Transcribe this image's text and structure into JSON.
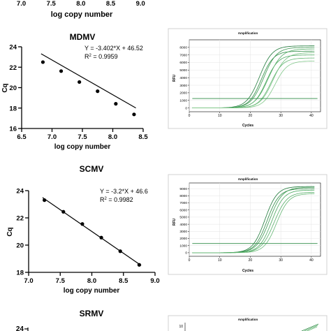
{
  "chart_data": [
    {
      "type": "scatter",
      "title": "",
      "xlabel": "log copy number",
      "ylabel": "",
      "x_ticks": [
        "7.0",
        "7.5",
        "8.0",
        "8.5",
        "9.0"
      ],
      "x_tick_values": [
        7.0,
        7.5,
        8.0,
        8.5,
        9.0
      ],
      "xlim": [
        6.9,
        9.15
      ],
      "partial": true
    },
    {
      "type": "scatter",
      "title": "MDMV",
      "xlabel": "log copy number",
      "ylabel": "Cq",
      "xlim": [
        6.5,
        8.5
      ],
      "ylim": [
        16,
        24
      ],
      "x_ticks": [
        "6.5",
        "7.0",
        "7.5",
        "8.0",
        "8.5"
      ],
      "x_tick_values": [
        6.5,
        7.0,
        7.5,
        8.0,
        8.5
      ],
      "y_ticks": [
        "16",
        "18",
        "20",
        "22",
        "24"
      ],
      "y_tick_values": [
        16,
        18,
        20,
        22,
        24
      ],
      "x": [
        6.85,
        7.15,
        7.45,
        7.75,
        8.05,
        8.35
      ],
      "y": [
        22.5,
        21.62,
        20.55,
        19.65,
        18.42,
        17.38
      ],
      "fit": {
        "slope": -3.402,
        "intercept": 46.52
      },
      "equation": "Y = -3.402*X + 46.52",
      "r2_label": "R",
      "r2_exp": "2",
      "r2_value": " = 0.9959"
    },
    {
      "type": "line",
      "title": "Amplification",
      "xlabel": "Cycles",
      "ylabel": "RFU",
      "xlim": [
        0,
        43
      ],
      "ylim": [
        -500,
        9000
      ],
      "x_ticks": [
        "0",
        "10",
        "20",
        "30",
        "40"
      ],
      "x_tick_values": [
        0,
        10,
        20,
        30,
        40
      ],
      "y_ticks": [
        "0",
        "1000",
        "2000",
        "3000",
        "4000",
        "5000",
        "6000",
        "7000",
        "8000"
      ],
      "y_tick_values": [
        0,
        1000,
        2000,
        3000,
        4000,
        5000,
        6000,
        7000,
        8000
      ],
      "threshold": 1250,
      "series": [
        {
          "midpoint": 23.0,
          "plateau": 8200,
          "slope": 2.1
        },
        {
          "midpoint": 23.6,
          "plateau": 7500,
          "slope": 2.0
        },
        {
          "midpoint": 24.4,
          "plateau": 8000,
          "slope": 2.1
        },
        {
          "midpoint": 25.2,
          "plateau": 7000,
          "slope": 2.0
        },
        {
          "midpoint": 25.9,
          "plateau": 7800,
          "slope": 2.2
        },
        {
          "midpoint": 26.7,
          "plateau": 6600,
          "slope": 2.0
        },
        {
          "midpoint": 27.4,
          "plateau": 7300,
          "slope": 2.1
        },
        {
          "midpoint": 28.1,
          "plateau": 6200,
          "slope": 2.0
        }
      ]
    },
    {
      "type": "scatter",
      "title": "SCMV",
      "xlabel": "log copy number",
      "ylabel": "Cq",
      "xlim": [
        7.0,
        9.0
      ],
      "ylim": [
        18,
        24
      ],
      "x_ticks": [
        "7.0",
        "7.5",
        "8.0",
        "8.5",
        "9.0"
      ],
      "x_tick_values": [
        7.0,
        7.5,
        8.0,
        8.5,
        9.0
      ],
      "y_ticks": [
        "18",
        "20",
        "22",
        "24"
      ],
      "y_tick_values": [
        18,
        20,
        22,
        24
      ],
      "x": [
        7.25,
        7.55,
        7.85,
        8.15,
        8.45,
        8.75
      ],
      "y": [
        23.3,
        22.45,
        21.55,
        20.55,
        19.55,
        18.55
      ],
      "fit": {
        "slope": -3.2,
        "intercept": 46.6
      },
      "equation": "Y = -3.2*X + 46.6",
      "r2_label": "R",
      "r2_exp": "2",
      "r2_value": " = 0.9982"
    },
    {
      "type": "line",
      "title": "Amplification",
      "xlabel": "Cycles",
      "ylabel": "RFU",
      "xlim": [
        0,
        43
      ],
      "ylim": [
        -500,
        9800
      ],
      "x_ticks": [
        "0",
        "10",
        "20",
        "30",
        "40"
      ],
      "x_tick_values": [
        0,
        10,
        20,
        30,
        40
      ],
      "y_ticks": [
        "0",
        "1000",
        "2000",
        "3000",
        "4000",
        "5000",
        "6000",
        "7000",
        "8000",
        "9000"
      ],
      "y_tick_values": [
        0,
        1000,
        2000,
        3000,
        4000,
        5000,
        6000,
        7000,
        8000,
        9000
      ],
      "threshold": 1300,
      "series": [
        {
          "midpoint": 24.8,
          "plateau": 9300,
          "slope": 2.0
        },
        {
          "midpoint": 25.5,
          "plateau": 9000,
          "slope": 2.0
        },
        {
          "midpoint": 26.3,
          "plateau": 9200,
          "slope": 2.1
        },
        {
          "midpoint": 27.0,
          "plateau": 8800,
          "slope": 2.0
        },
        {
          "midpoint": 27.8,
          "plateau": 8500,
          "slope": 2.1
        },
        {
          "midpoint": 28.6,
          "plateau": 8300,
          "slope": 2.0
        }
      ]
    },
    {
      "type": "scatter",
      "title": "SRMV",
      "ylabel": "",
      "y_ticks": [
        "24"
      ],
      "partial": true
    },
    {
      "type": "line",
      "title": "Amplification",
      "y_ticks": [
        "10"
      ],
      "partial": true
    }
  ]
}
